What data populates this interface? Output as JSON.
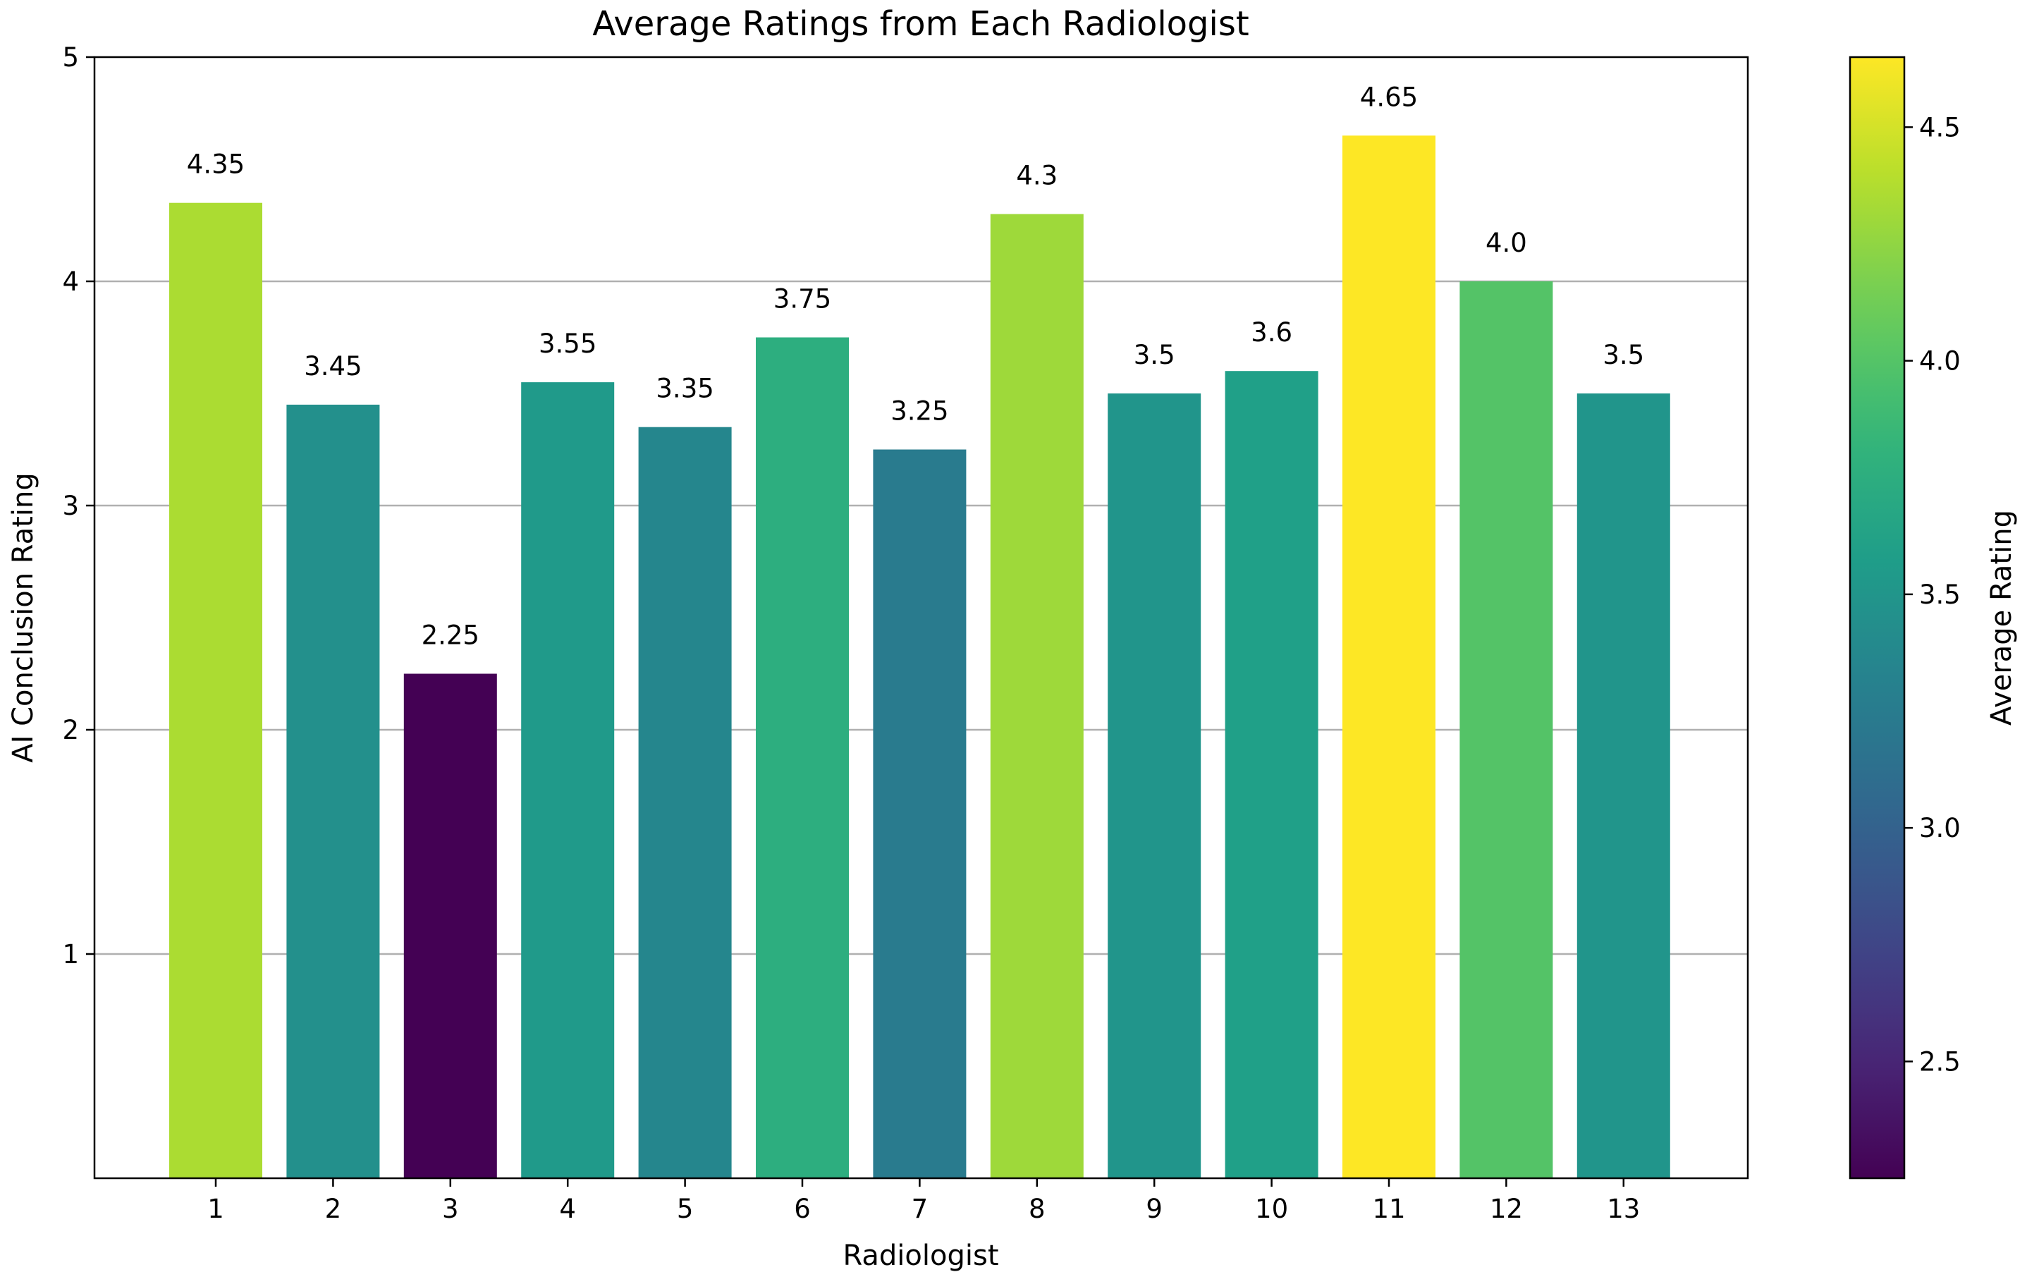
{
  "chart_data": {
    "type": "bar",
    "title": "Average Ratings from Each Radiologist",
    "xlabel": "Radiologist",
    "ylabel": "AI Conclusion Rating",
    "categories": [
      "1",
      "2",
      "3",
      "4",
      "5",
      "6",
      "7",
      "8",
      "9",
      "10",
      "11",
      "12",
      "13"
    ],
    "values": [
      4.35,
      3.45,
      2.25,
      3.55,
      3.35,
      3.75,
      3.25,
      4.3,
      3.5,
      3.6,
      4.65,
      4.0,
      3.5
    ],
    "data_labels": [
      "4.35",
      "3.45",
      "2.25",
      "3.55",
      "3.35",
      "3.75",
      "3.25",
      "4.3",
      "3.5",
      "3.6",
      "4.65",
      "4.0",
      "3.5"
    ],
    "ylim": [
      0,
      5
    ],
    "yticks": [
      "1",
      "2",
      "3",
      "4",
      "5"
    ],
    "grid": "horizontal",
    "colormap": "viridis",
    "colorbar": {
      "label": "Average Rating",
      "range": [
        2.25,
        4.65
      ],
      "ticks": [
        "2.5",
        "3.0",
        "3.5",
        "4.0",
        "4.5"
      ]
    }
  }
}
